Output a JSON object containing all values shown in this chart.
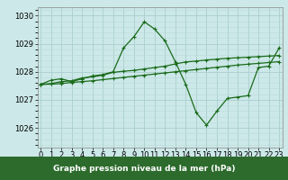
{
  "xlabel": "Graphe pression niveau de la mer (hPa)",
  "x": [
    0,
    1,
    2,
    3,
    4,
    5,
    6,
    7,
    8,
    9,
    10,
    11,
    12,
    13,
    14,
    15,
    16,
    17,
    18,
    19,
    20,
    21,
    22,
    23
  ],
  "line1": [
    1027.55,
    1027.7,
    1027.75,
    1027.65,
    1027.75,
    1027.85,
    1027.9,
    1028.0,
    1028.85,
    1029.25,
    1029.78,
    1029.52,
    1029.1,
    1028.35,
    1027.55,
    1026.55,
    1026.1,
    1026.6,
    1027.05,
    1027.1,
    1027.15,
    1028.15,
    1028.2,
    1028.85
  ],
  "line2": [
    1027.55,
    1027.58,
    1027.65,
    1027.68,
    1027.78,
    1027.82,
    1027.88,
    1027.98,
    1028.02,
    1028.05,
    1028.1,
    1028.15,
    1028.2,
    1028.28,
    1028.35,
    1028.38,
    1028.42,
    1028.45,
    1028.48,
    1028.5,
    1028.52,
    1028.54,
    1028.56,
    1028.58
  ],
  "line3": [
    1027.55,
    1027.56,
    1027.58,
    1027.62,
    1027.65,
    1027.68,
    1027.72,
    1027.76,
    1027.8,
    1027.84,
    1027.88,
    1027.92,
    1027.96,
    1028.0,
    1028.04,
    1028.08,
    1028.12,
    1028.16,
    1028.2,
    1028.24,
    1028.27,
    1028.3,
    1028.33,
    1028.36
  ],
  "line_color": "#1a6b1a",
  "bg_color": "#cce8e8",
  "grid_major_color": "#aacece",
  "grid_minor_color": "#bbdada",
  "footer_bg": "#2d6b2d",
  "footer_text_color": "#ffffff",
  "ylim": [
    1025.3,
    1030.3
  ],
  "xlim": [
    -0.3,
    23.3
  ],
  "yticks": [
    1026,
    1027,
    1028,
    1029,
    1030
  ],
  "xticks": [
    0,
    1,
    2,
    3,
    4,
    5,
    6,
    7,
    8,
    9,
    10,
    11,
    12,
    13,
    14,
    15,
    16,
    17,
    18,
    19,
    20,
    21,
    22,
    23
  ],
  "xlabel_fontsize": 6.5,
  "tick_fontsize": 6.0,
  "marker": "+",
  "markersize": 3.5,
  "linewidth": 0.9
}
